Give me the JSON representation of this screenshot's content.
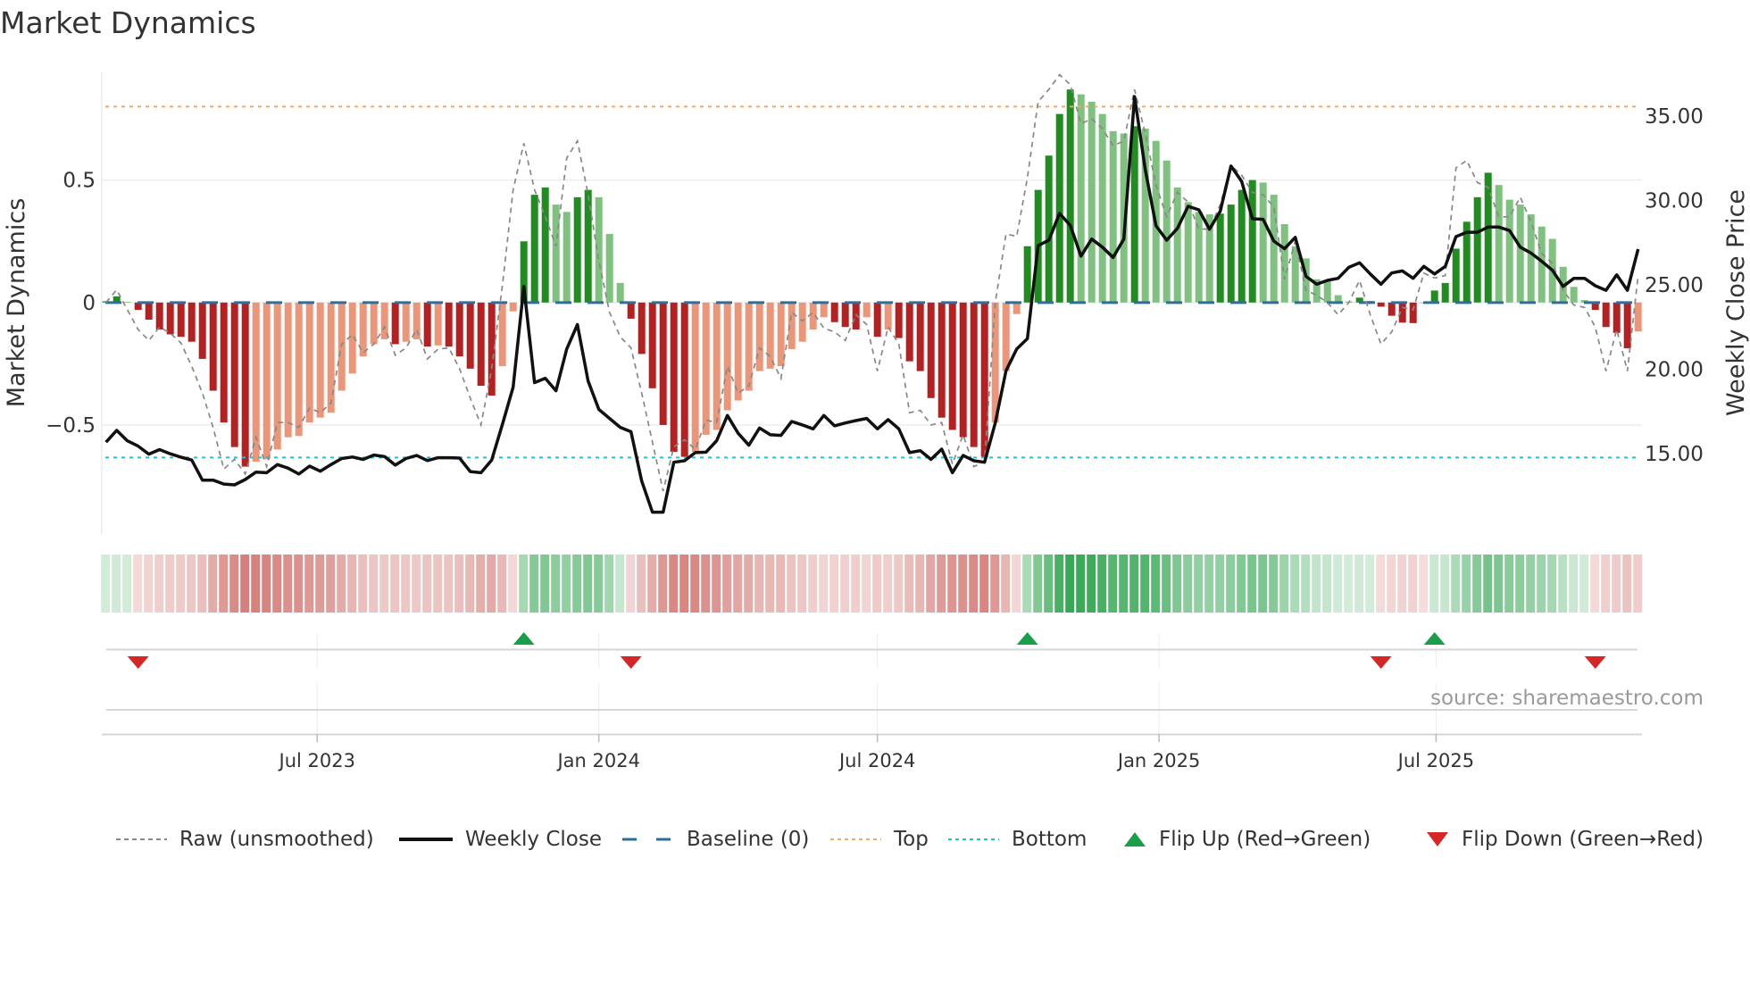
{
  "title": "Market Dynamics",
  "source": "source: sharemaestro.com",
  "legend": {
    "raw": "Raw (unsmoothed)",
    "close": "Weekly Close",
    "baseline": "Baseline (0)",
    "top": "Top",
    "bottom": "Bottom",
    "flip_up": "Flip Up (Red→Green)",
    "flip_down": "Flip Down (Green→Red)"
  },
  "colors": {
    "pos_strong": "#228b22",
    "pos_weak": "#80c080",
    "neg_strong": "#b22222",
    "neg_weak": "#e9967a",
    "raw": "#888888",
    "close": "#111111",
    "baseline": "#2b6f9e",
    "top": "#f0a868",
    "bottom": "#22c0d8",
    "flip_up": "#1a9e4a",
    "flip_down": "#d62728"
  },
  "chart_data": {
    "type": "bar",
    "title": "Market Dynamics",
    "ylabel": "Market Dynamics",
    "y2label": "Weekly Close Price",
    "ylim": [
      -0.945,
      0.94
    ],
    "y2lim": [
      10.24,
      37.6
    ],
    "start_week": "2023-02-13",
    "frequency": "weekly",
    "yticks": [
      {
        "v": 0.5,
        "label": "0.5"
      },
      {
        "v": 0,
        "label": "0"
      },
      {
        "v": -0.5,
        "label": "−0.5"
      }
    ],
    "y2ticks": [
      {
        "v": 35,
        "label": "35.00"
      },
      {
        "v": 30,
        "label": "30.00"
      },
      {
        "v": 25,
        "label": "25.00"
      },
      {
        "v": 20,
        "label": "20.00"
      },
      {
        "v": 15,
        "label": "15.00"
      }
    ],
    "xticks": [
      {
        "date": "2023-07-01",
        "label": "Jul 2023"
      },
      {
        "date": "2024-01-01",
        "label": "Jan 2024"
      },
      {
        "date": "2024-07-01",
        "label": "Jul 2024"
      },
      {
        "date": "2025-01-01",
        "label": "Jan 2025"
      },
      {
        "date": "2025-07-01",
        "label": "Jul 2025"
      }
    ],
    "top_level": 0.8,
    "bottom_level": -0.633,
    "baseline": 0,
    "dynamics": [
      0.005,
      0.025,
      0.003,
      -0.03,
      -0.07,
      -0.11,
      -0.13,
      -0.14,
      -0.16,
      -0.23,
      -0.36,
      -0.49,
      -0.59,
      -0.67,
      -0.65,
      -0.64,
      -0.6,
      -0.55,
      -0.545,
      -0.49,
      -0.47,
      -0.45,
      -0.36,
      -0.29,
      -0.22,
      -0.17,
      -0.15,
      -0.17,
      -0.16,
      -0.15,
      -0.18,
      -0.175,
      -0.18,
      -0.22,
      -0.27,
      -0.34,
      -0.38,
      -0.26,
      -0.036,
      0.25,
      0.44,
      0.47,
      0.4,
      0.37,
      0.43,
      0.46,
      0.43,
      0.28,
      0.08,
      -0.066,
      -0.21,
      -0.35,
      -0.5,
      -0.61,
      -0.63,
      -0.61,
      -0.54,
      -0.52,
      -0.44,
      -0.4,
      -0.36,
      -0.28,
      -0.27,
      -0.26,
      -0.19,
      -0.16,
      -0.11,
      -0.06,
      -0.08,
      -0.1,
      -0.11,
      -0.06,
      -0.14,
      -0.11,
      -0.145,
      -0.24,
      -0.28,
      -0.39,
      -0.47,
      -0.52,
      -0.55,
      -0.59,
      -0.63,
      -0.49,
      -0.28,
      -0.047,
      0.23,
      0.46,
      0.6,
      0.77,
      0.87,
      0.85,
      0.82,
      0.77,
      0.7,
      0.69,
      0.72,
      0.71,
      0.66,
      0.58,
      0.47,
      0.41,
      0.37,
      0.36,
      0.363,
      0.4,
      0.46,
      0.5,
      0.49,
      0.44,
      0.32,
      0.23,
      0.18,
      0.095,
      0.085,
      0.03,
      0.004,
      0.02,
      0.007,
      -0.017,
      -0.054,
      -0.082,
      -0.084,
      -0.003,
      0.049,
      0.08,
      0.22,
      0.33,
      0.43,
      0.53,
      0.48,
      0.42,
      0.4,
      0.36,
      0.31,
      0.26,
      0.146,
      0.064,
      0.01,
      -0.03,
      -0.1,
      -0.124,
      -0.187,
      -0.118
    ],
    "raw": [
      0.0,
      0.052,
      -0.03,
      -0.11,
      -0.155,
      -0.1,
      -0.125,
      -0.165,
      -0.26,
      -0.37,
      -0.51,
      -0.68,
      -0.64,
      -0.7,
      -0.55,
      -0.67,
      -0.49,
      -0.49,
      -0.51,
      -0.43,
      -0.45,
      -0.41,
      -0.17,
      -0.13,
      -0.205,
      -0.17,
      -0.1,
      -0.215,
      -0.185,
      -0.11,
      -0.23,
      -0.19,
      -0.185,
      -0.27,
      -0.39,
      -0.5,
      -0.27,
      0.07,
      0.46,
      0.65,
      0.46,
      0.35,
      0.23,
      0.59,
      0.66,
      0.44,
      0.17,
      -0.04,
      -0.14,
      -0.185,
      -0.37,
      -0.57,
      -0.77,
      -0.59,
      -0.56,
      -0.6,
      -0.48,
      -0.49,
      -0.26,
      -0.37,
      -0.34,
      -0.185,
      -0.22,
      -0.31,
      -0.04,
      -0.075,
      -0.04,
      -0.105,
      -0.12,
      -0.155,
      -0.05,
      -0.09,
      -0.28,
      -0.1,
      -0.17,
      -0.45,
      -0.44,
      -0.5,
      -0.49,
      -0.66,
      -0.54,
      -0.67,
      -0.65,
      0.0,
      0.28,
      0.27,
      0.51,
      0.82,
      0.87,
      0.93,
      0.89,
      0.73,
      0.75,
      0.71,
      0.64,
      0.66,
      0.87,
      0.69,
      0.48,
      0.35,
      0.45,
      0.41,
      0.3,
      0.3,
      0.4,
      0.56,
      0.52,
      0.45,
      0.44,
      0.39,
      0.095,
      0.25,
      0.05,
      0.03,
      0.0,
      -0.05,
      0.0,
      0.09,
      -0.05,
      -0.17,
      -0.12,
      -0.02,
      -0.03,
      0.12,
      0.1,
      0.11,
      0.55,
      0.58,
      0.49,
      0.47,
      0.35,
      0.35,
      0.43,
      0.33,
      0.2,
      0.16,
      0.05,
      -0.01,
      -0.02,
      -0.1,
      -0.28,
      -0.11,
      -0.28,
      0.11
    ],
    "close": [
      15.68,
      16.38,
      15.76,
      15.45,
      14.97,
      15.24,
      14.99,
      14.79,
      14.62,
      13.43,
      13.43,
      13.2,
      13.15,
      13.47,
      13.91,
      13.87,
      14.35,
      14.14,
      13.79,
      14.26,
      13.96,
      14.35,
      14.71,
      14.8,
      14.66,
      14.92,
      14.83,
      14.32,
      14.71,
      14.89,
      14.59,
      14.76,
      14.76,
      14.74,
      13.94,
      13.87,
      14.62,
      16.74,
      18.94,
      24.91,
      19.21,
      19.47,
      18.73,
      21.2,
      22.65,
      19.3,
      17.62,
      17.09,
      16.56,
      16.3,
      13.38,
      11.53,
      11.53,
      14.49,
      14.58,
      15.06,
      15.09,
      15.77,
      17.26,
      16.21,
      15.5,
      16.52,
      16.12,
      16.08,
      16.91,
      16.7,
      16.47,
      17.26,
      16.65,
      16.82,
      16.96,
      17.09,
      16.47,
      17.02,
      16.47,
      15.06,
      15.18,
      14.66,
      15.27,
      13.87,
      14.89,
      14.58,
      14.49,
      16.82,
      19.91,
      21.2,
      21.82,
      27.33,
      27.65,
      29.24,
      28.53,
      26.71,
      27.72,
      27.24,
      26.63,
      27.72,
      36.16,
      31.83,
      28.51,
      27.65,
      28.35,
      29.66,
      29.45,
      28.3,
      29.37,
      32.05,
      31.13,
      28.92,
      28.89,
      27.6,
      27.15,
      27.82,
      25.51,
      25.04,
      25.27,
      25.39,
      26.04,
      26.31,
      25.65,
      25.04,
      25.71,
      25.83,
      25.39,
      26.1,
      25.65,
      26.1,
      27.86,
      28.12,
      28.12,
      28.43,
      28.43,
      28.22,
      27.24,
      26.89,
      26.4,
      25.87,
      24.91,
      25.39,
      25.39,
      24.95,
      24.68,
      25.6,
      24.68,
      27.12
    ],
    "flips_up": [
      39,
      86,
      124
    ],
    "flips_down": [
      3,
      49,
      119,
      139
    ],
    "legend_position": "bottom",
    "grid": true
  }
}
